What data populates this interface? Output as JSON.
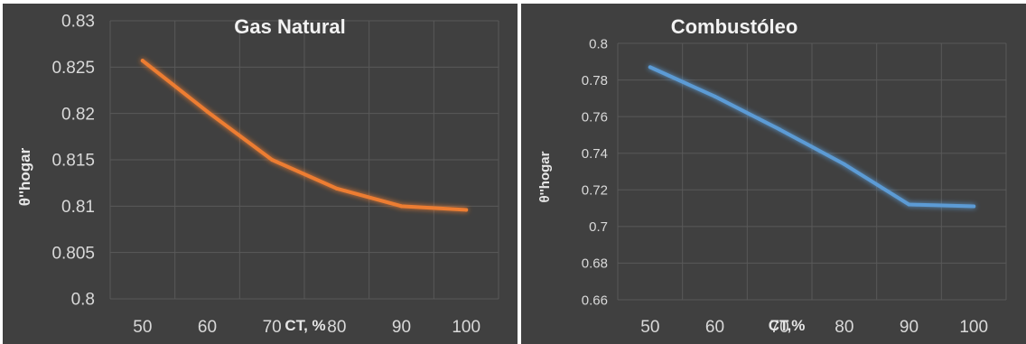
{
  "chart_data": [
    {
      "type": "line",
      "title": "Gas Natural",
      "xlabel": "CT, %",
      "ylabel": "θ''hogar",
      "x": [
        50,
        60,
        70,
        80,
        90,
        100
      ],
      "xticks": [
        "50",
        "60",
        "70",
        "80",
        "90",
        "100"
      ],
      "yticks": [
        "0.8",
        "0.805",
        "0.81",
        "0.815",
        "0.82",
        "0.825",
        "0.83"
      ],
      "ylim": [
        0.8,
        0.83
      ],
      "grid": true,
      "series": [
        {
          "values": [
            0.8257,
            0.8202,
            0.815,
            0.8119,
            0.81,
            0.8096
          ],
          "color": "#ed7d31"
        }
      ]
    },
    {
      "type": "line",
      "title": "Combustóleo",
      "xlabel": "CT,%",
      "ylabel": "θ''hogar",
      "x": [
        50,
        60,
        70,
        80,
        90,
        100
      ],
      "xticks": [
        "50",
        "60",
        "70",
        "80",
        "90",
        "100"
      ],
      "yticks": [
        "0.66",
        "0.68",
        "0.7",
        "0.72",
        "0.74",
        "0.76",
        "0.78",
        "0.8"
      ],
      "ylim": [
        0.66,
        0.8
      ],
      "grid": true,
      "series": [
        {
          "values": [
            0.787,
            0.771,
            0.753,
            0.734,
            0.712,
            0.711
          ],
          "color": "#5b9bd5"
        }
      ]
    }
  ]
}
